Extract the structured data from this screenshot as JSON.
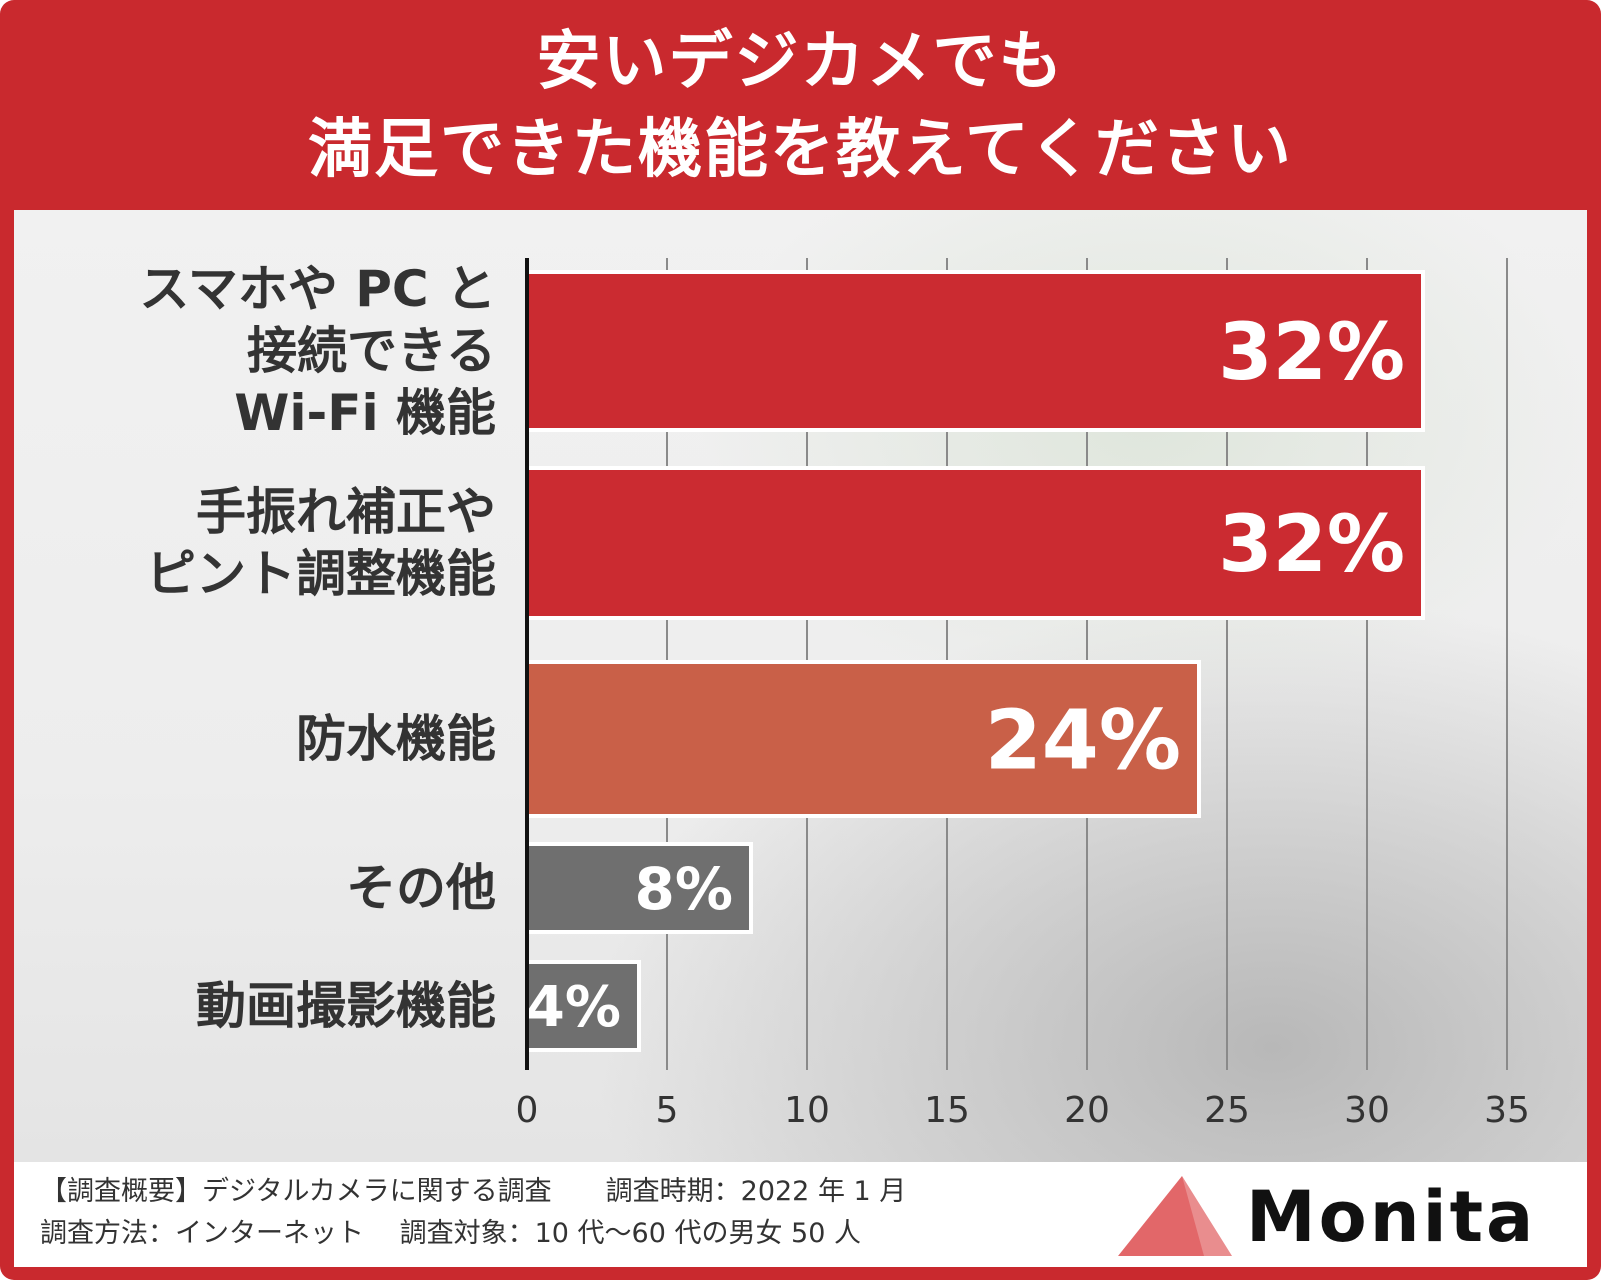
{
  "title": [
    "安いデジカメでも",
    "満足できた機能を教えてください"
  ],
  "chart_data": {
    "type": "bar",
    "orientation": "horizontal",
    "categories": [
      [
        "スマホや PC と",
        "接続できる",
        "Wi-Fi 機能"
      ],
      [
        "手振れ補正や",
        "ピント調整機能"
      ],
      [
        "防水機能"
      ],
      [
        "その他"
      ],
      [
        "動画撮影機能"
      ]
    ],
    "values": [
      32,
      32,
      24,
      8,
      4
    ],
    "data_labels": [
      "32%",
      "32%",
      "24%",
      "8%",
      "4%"
    ],
    "bar_colors": [
      "#cb2b31",
      "#cb2b31",
      "#c96048",
      "#6f6f6f",
      "#6f6f6f"
    ],
    "xlim": [
      0,
      35
    ],
    "xticks": [
      "0",
      "5",
      "10",
      "15",
      "20",
      "25",
      "30",
      "35"
    ],
    "grid": true
  },
  "footer": {
    "line1": "【調査概要】デジタルカメラに関する調査　　調査時期：2022 年 1 月",
    "line2": "調査方法：インターネット　 調査対象：10 代〜60 代の男女 50 人"
  },
  "logo": {
    "text": "Monita",
    "color": "#e05a5c"
  }
}
